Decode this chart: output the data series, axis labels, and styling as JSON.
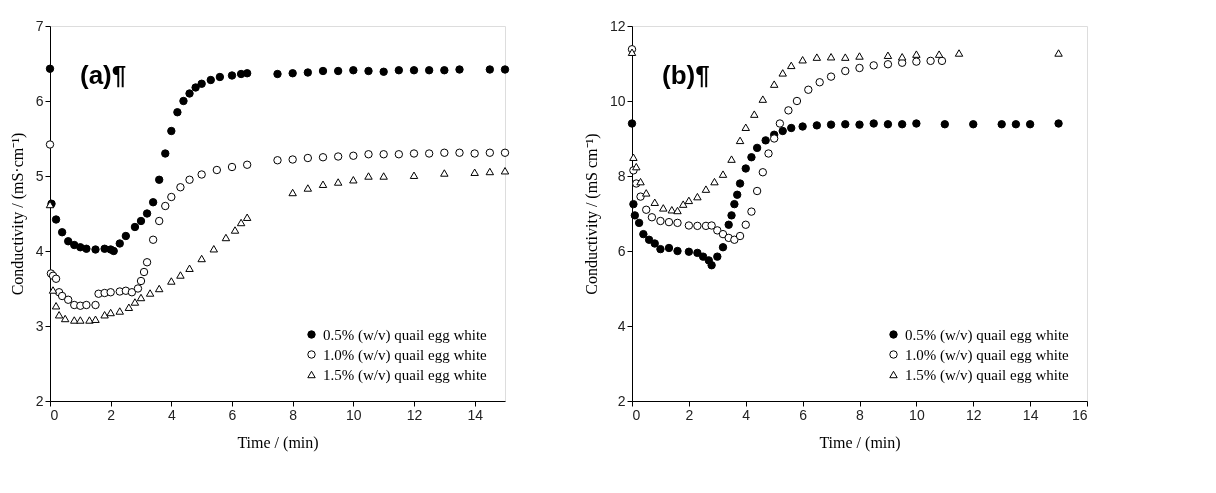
{
  "chart_data": [
    {
      "type": "scatter",
      "xlabel": "Time / (min)",
      "ylabel": "Conductivity / (mS·cm⁻¹)",
      "annotations": [
        "(a)¶"
      ],
      "xlim": [
        0,
        15
      ],
      "xticks": [
        0,
        2,
        4,
        6,
        8,
        10,
        12,
        14
      ],
      "ylim": [
        2,
        7
      ],
      "yticks": [
        2,
        3,
        4,
        5,
        6,
        7
      ],
      "grid": false,
      "legend": "bottom right",
      "series": [
        {
          "name": "0.5% (w/v) quail egg white",
          "color": "#000000",
          "marker": "circle",
          "x": [
            0,
            0.05,
            0.2,
            0.4,
            0.6,
            0.8,
            1.0,
            1.2,
            1.5,
            1.8,
            2.0,
            2.1,
            2.3,
            2.5,
            2.8,
            3.0,
            3.2,
            3.4,
            3.6,
            3.8,
            4.0,
            4.2,
            4.4,
            4.6,
            4.8,
            5.0,
            5.3,
            5.6,
            6.0,
            6.3,
            6.5,
            7.5,
            8,
            8.5,
            9,
            9.5,
            10,
            10.5,
            11,
            11.5,
            12,
            12.5,
            13,
            13.5,
            14.5,
            15
          ],
          "values": [
            6.43,
            4.63,
            4.42,
            4.25,
            4.13,
            4.08,
            4.05,
            4.03,
            4.02,
            4.03,
            4.02,
            4.0,
            4.1,
            4.2,
            4.32,
            4.4,
            4.5,
            4.65,
            4.95,
            5.3,
            5.6,
            5.85,
            6.0,
            6.1,
            6.18,
            6.23,
            6.28,
            6.32,
            6.34,
            6.36,
            6.37,
            6.36,
            6.37,
            6.38,
            6.4,
            6.4,
            6.41,
            6.4,
            6.39,
            6.41,
            6.41,
            6.41,
            6.41,
            6.42,
            6.42,
            6.42
          ]
        },
        {
          "name": "1.0% (w/v) quail egg white",
          "color": "#ffffff",
          "marker": "circle",
          "x": [
            0,
            0.03,
            0.1,
            0.2,
            0.3,
            0.4,
            0.6,
            0.8,
            1.0,
            1.2,
            1.5,
            1.6,
            1.8,
            2.0,
            2.3,
            2.5,
            2.7,
            2.9,
            3.0,
            3.1,
            3.2,
            3.4,
            3.6,
            3.8,
            4.0,
            4.3,
            4.6,
            5.0,
            5.5,
            6.0,
            6.5,
            7.5,
            8,
            8.5,
            9,
            9.5,
            10,
            10.5,
            11,
            11.5,
            12,
            12.5,
            13,
            13.5,
            14,
            14.5,
            15
          ],
          "values": [
            5.42,
            3.7,
            3.67,
            3.63,
            3.45,
            3.4,
            3.35,
            3.28,
            3.27,
            3.28,
            3.28,
            3.43,
            3.44,
            3.45,
            3.46,
            3.47,
            3.45,
            3.5,
            3.6,
            3.72,
            3.85,
            4.15,
            4.4,
            4.6,
            4.72,
            4.85,
            4.95,
            5.02,
            5.08,
            5.12,
            5.15,
            5.21,
            5.22,
            5.24,
            5.25,
            5.26,
            5.27,
            5.29,
            5.29,
            5.29,
            5.3,
            5.3,
            5.31,
            5.31,
            5.3,
            5.31,
            5.31
          ]
        },
        {
          "name": "1.5% (w/v) quail egg white",
          "color": "#ffffff",
          "marker": "triangle",
          "x": [
            0,
            0.1,
            0.2,
            0.3,
            0.5,
            0.8,
            1.0,
            1.3,
            1.5,
            1.8,
            2.0,
            2.3,
            2.6,
            2.8,
            3.0,
            3.3,
            3.6,
            4.0,
            4.3,
            4.6,
            5.0,
            5.4,
            5.8,
            6.1,
            6.3,
            6.5,
            8,
            8.5,
            9,
            9.5,
            10,
            10.5,
            11,
            12,
            13,
            14,
            14.5,
            15
          ],
          "values": [
            4.62,
            3.48,
            3.27,
            3.15,
            3.1,
            3.08,
            3.08,
            3.08,
            3.09,
            3.15,
            3.18,
            3.2,
            3.25,
            3.32,
            3.38,
            3.44,
            3.5,
            3.6,
            3.68,
            3.77,
            3.9,
            4.03,
            4.18,
            4.28,
            4.38,
            4.45,
            4.78,
            4.84,
            4.89,
            4.92,
            4.95,
            5.0,
            5.0,
            5.01,
            5.04,
            5.05,
            5.06,
            5.07
          ]
        }
      ]
    },
    {
      "type": "scatter",
      "xlabel": "Time / (min)",
      "ylabel": "Conductivity / (mS cm⁻¹)",
      "annotations": [
        "(b)¶"
      ],
      "xlim": [
        0,
        16
      ],
      "xticks": [
        0,
        2,
        4,
        6,
        8,
        10,
        12,
        14,
        16
      ],
      "ylim": [
        2,
        12
      ],
      "yticks": [
        2,
        4,
        6,
        8,
        10,
        12
      ],
      "grid": false,
      "legend": "bottom right",
      "series": [
        {
          "name": "0.5% (w/v) quail egg white",
          "color": "#000000",
          "marker": "circle",
          "x": [
            0,
            0.05,
            0.1,
            0.25,
            0.4,
            0.6,
            0.8,
            1.0,
            1.3,
            1.6,
            2.0,
            2.3,
            2.5,
            2.7,
            2.8,
            3.0,
            3.2,
            3.4,
            3.5,
            3.6,
            3.7,
            3.8,
            4.0,
            4.2,
            4.4,
            4.7,
            5.0,
            5.3,
            5.6,
            6.0,
            6.5,
            7.0,
            7.5,
            8,
            8.5,
            9,
            9.5,
            10,
            11,
            12,
            13,
            13.5,
            14,
            15
          ],
          "values": [
            9.4,
            7.25,
            6.95,
            6.75,
            6.45,
            6.3,
            6.2,
            6.05,
            6.08,
            6.0,
            5.98,
            5.95,
            5.85,
            5.75,
            5.62,
            5.85,
            6.1,
            6.7,
            6.95,
            7.25,
            7.5,
            7.8,
            8.2,
            8.5,
            8.75,
            8.95,
            9.1,
            9.2,
            9.28,
            9.32,
            9.35,
            9.37,
            9.38,
            9.37,
            9.4,
            9.38,
            9.38,
            9.4,
            9.38,
            9.38,
            9.38,
            9.38,
            9.38,
            9.4
          ]
        },
        {
          "name": "1.0% (w/v) quail egg white",
          "color": "#ffffff",
          "marker": "circle",
          "x": [
            0,
            0.05,
            0.15,
            0.3,
            0.5,
            0.7,
            1.0,
            1.3,
            1.6,
            2.0,
            2.3,
            2.6,
            2.8,
            3.0,
            3.2,
            3.4,
            3.6,
            3.8,
            4.0,
            4.2,
            4.4,
            4.6,
            4.8,
            5.0,
            5.2,
            5.5,
            5.8,
            6.2,
            6.6,
            7.0,
            7.5,
            8.0,
            8.5,
            9.0,
            9.5,
            10.0,
            10.5,
            10.9
          ],
          "values": [
            11.38,
            8.15,
            7.8,
            7.45,
            7.1,
            6.9,
            6.8,
            6.77,
            6.75,
            6.68,
            6.67,
            6.67,
            6.68,
            6.55,
            6.45,
            6.35,
            6.3,
            6.4,
            6.7,
            7.05,
            7.6,
            8.1,
            8.6,
            9.0,
            9.4,
            9.75,
            10.0,
            10.3,
            10.5,
            10.65,
            10.8,
            10.88,
            10.95,
            10.98,
            11.02,
            11.05,
            11.07,
            11.07
          ]
        },
        {
          "name": "1.5% (w/v) quail egg white",
          "color": "#ffffff",
          "marker": "triangle",
          "x": [
            0,
            0.05,
            0.15,
            0.3,
            0.5,
            0.8,
            1.1,
            1.4,
            1.6,
            1.8,
            2.0,
            2.3,
            2.6,
            2.9,
            3.2,
            3.5,
            3.8,
            4.0,
            4.3,
            4.6,
            5.0,
            5.3,
            5.6,
            6.0,
            6.5,
            7.0,
            7.5,
            8,
            9,
            9.5,
            10,
            10.8,
            11.5,
            15
          ],
          "values": [
            11.3,
            8.5,
            8.25,
            7.85,
            7.55,
            7.3,
            7.15,
            7.1,
            7.08,
            7.25,
            7.35,
            7.45,
            7.65,
            7.85,
            8.05,
            8.45,
            8.95,
            9.3,
            9.65,
            10.05,
            10.45,
            10.75,
            10.95,
            11.1,
            11.17,
            11.18,
            11.17,
            11.2,
            11.22,
            11.18,
            11.25,
            11.25,
            11.28,
            11.28
          ]
        }
      ]
    }
  ]
}
